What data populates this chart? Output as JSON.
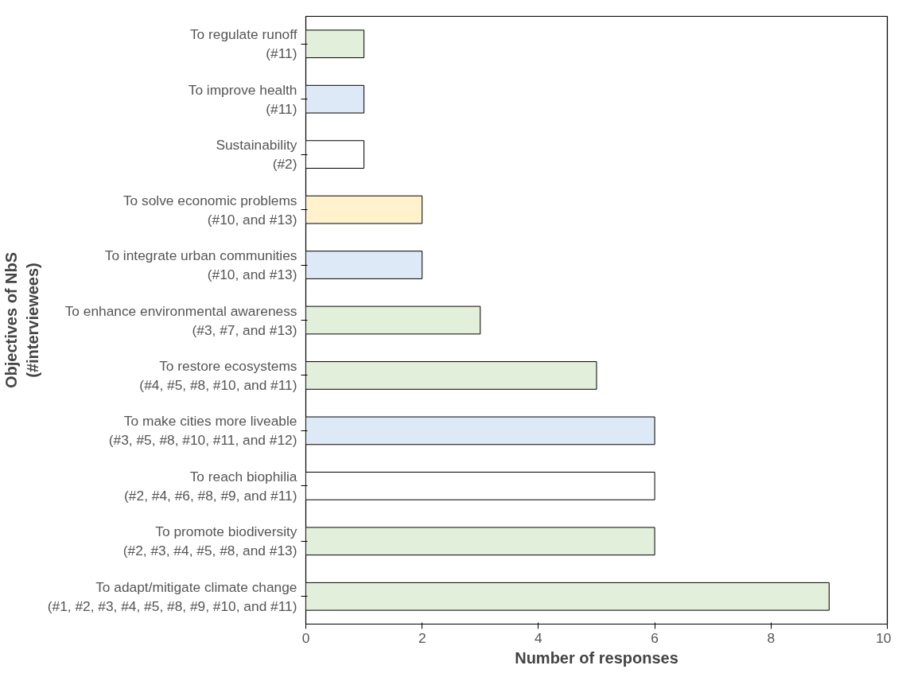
{
  "chart_data": {
    "type": "bar",
    "orientation": "horizontal",
    "xlabel": "Number of responses",
    "ylabel": "Objectives of NbS\n(#interviewees)",
    "categories": [
      "To regulate runoff\n(#11)",
      "To improve health\n(#11)",
      "Sustainability\n(#2)",
      "To solve economic problems\n(#10, and #13)",
      "To integrate urban communities\n(#10, and #13)",
      "To enhance environmental awareness\n(#3, #7, and #13)",
      "To restore ecosystems\n(#4, #5, #8, #10, and #11)",
      "To make cities more liveable\n(#3, #5, #8, #10, #11, and #12)",
      "To reach biophilia\n(#2, #4, #6, #8, #9, and #11)",
      "To promote biodiversity\n(#2, #3, #4, #5, #8, and #13)",
      "To adapt/mitigate climate change\n(#1, #2, #3, #4, #5, #8, #9, #10, and #11)"
    ],
    "values": [
      1,
      1,
      1,
      2,
      2,
      3,
      5,
      6,
      6,
      6,
      9
    ],
    "colors": [
      "#e2efda",
      "#dde9f6",
      "#ffffff",
      "#fff2cc",
      "#dde9f6",
      "#e2efda",
      "#e2efda",
      "#dde9f6",
      "#ffffff",
      "#e2efda",
      "#e2efda"
    ],
    "xlim": [
      0,
      10
    ],
    "xticks": [
      0,
      2,
      4,
      6,
      8,
      10
    ],
    "grid": false
  }
}
